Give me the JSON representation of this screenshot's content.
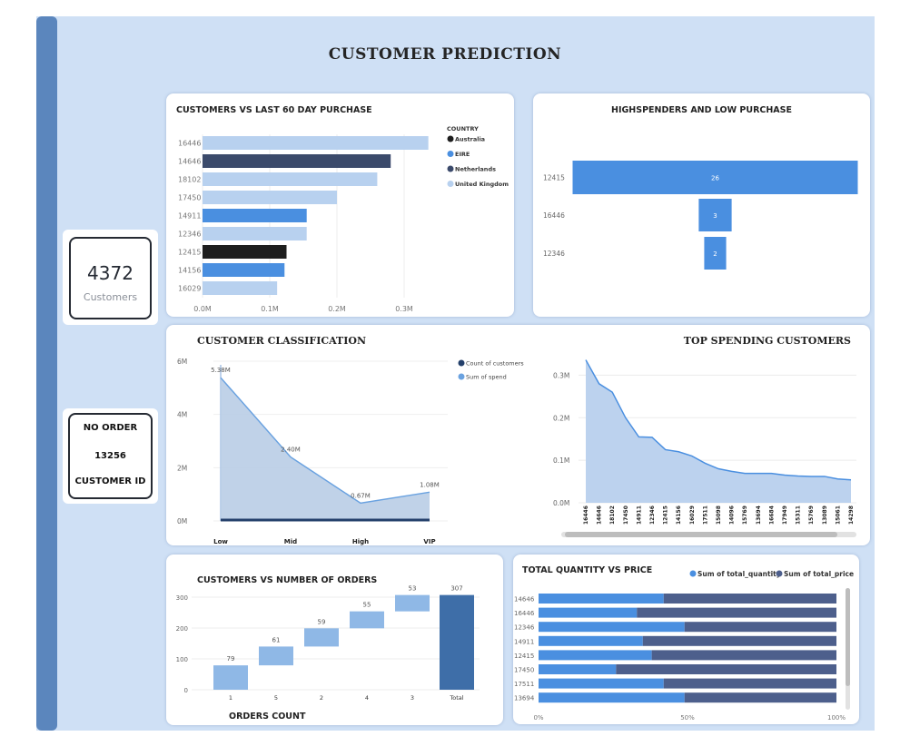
{
  "page": {
    "title": "CUSTOMER PREDICTION"
  },
  "kpi": {
    "value": "4372",
    "label": "Customers"
  },
  "no_order": {
    "line1": "NO ORDER",
    "line2": "13256",
    "line3": "CUSTOMER ID"
  },
  "colors": {
    "background": "#cfe0f5",
    "sidebar": "#5b86bd",
    "australia": "#1e1e1e",
    "eire": "#4a8fe0",
    "netherlands": "#3b4a6b",
    "united_kingdom": "#b8d1ef",
    "count_of_customers": "#24406b",
    "sum_of_spend": "#6aa2e0",
    "waterfall_step": "#8fb8e6",
    "waterfall_total": "#3e6ea8",
    "quantity": "#4a8fe0",
    "price": "#4d5f8c"
  },
  "chart_data": [
    {
      "id": "customers_vs_last_60",
      "type": "bar",
      "orientation": "horizontal",
      "title": "CUSTOMERS VS LAST 60 DAY PURCHASE",
      "categories": [
        "16446",
        "14646",
        "18102",
        "17450",
        "14911",
        "12346",
        "12415",
        "14156",
        "16029"
      ],
      "values": [
        0.336,
        0.28,
        0.26,
        0.2,
        0.155,
        0.155,
        0.125,
        0.122,
        0.111
      ],
      "country": [
        "United Kingdom",
        "Netherlands",
        "United Kingdom",
        "United Kingdom",
        "EIRE",
        "United Kingdom",
        "Australia",
        "EIRE",
        "United Kingdom"
      ],
      "x_ticks": [
        "0.0M",
        "0.1M",
        "0.2M",
        "0.3M"
      ],
      "xlim": [
        0,
        0.36
      ],
      "legend_title": "COUNTRY",
      "legend": [
        "Australia",
        "EIRE",
        "Netherlands",
        "United Kingdom"
      ],
      "legend_position": "right"
    },
    {
      "id": "highspenders",
      "type": "bar",
      "orientation": "funnel",
      "title": "HIGHSPENDERS AND LOW PURCHASE",
      "categories": [
        "12415",
        "16446",
        "12346"
      ],
      "values": [
        26,
        3,
        2
      ],
      "value_labels": [
        "26",
        "3",
        "2"
      ]
    },
    {
      "id": "customer_classification",
      "type": "area",
      "title": "CUSTOMER CLASSIFICATION",
      "categories": [
        "Low",
        "Mid",
        "High",
        "VIP"
      ],
      "series": [
        {
          "name": "Count of customers",
          "values": [
            0.0011,
            0.0014,
            0.0004,
            0.0001
          ]
        },
        {
          "name": "Sum of spend",
          "values": [
            5.38,
            2.4,
            0.67,
            1.08
          ],
          "labels": [
            "5.38M",
            "2.40M",
            "0.67M",
            "1.08M"
          ]
        }
      ],
      "y_ticks": [
        "0M",
        "2M",
        "4M",
        "6M"
      ],
      "ylim": [
        0,
        6
      ],
      "legend_position": "top-right"
    },
    {
      "id": "top_spending",
      "type": "area",
      "title": "TOP SPENDING CUSTOMERS",
      "categories": [
        "16446",
        "14646",
        "18102",
        "17450",
        "14911",
        "12346",
        "12415",
        "14156",
        "16029",
        "17511",
        "15098",
        "14096",
        "15769",
        "13694",
        "16684",
        "17949",
        "15311",
        "15769",
        "13089",
        "15061",
        "14298"
      ],
      "values": [
        0.336,
        0.28,
        0.26,
        0.2,
        0.155,
        0.154,
        0.125,
        0.12,
        0.11,
        0.093,
        0.08,
        0.074,
        0.069,
        0.069,
        0.069,
        0.065,
        0.063,
        0.062,
        0.062,
        0.056,
        0.054
      ],
      "y_ticks": [
        "0.0M",
        "0.1M",
        "0.2M",
        "0.3M"
      ],
      "ylim": [
        0,
        0.35
      ]
    },
    {
      "id": "customers_vs_orders",
      "type": "bar",
      "subtype": "waterfall",
      "title": "CUSTOMERS VS NUMBER OF ORDERS",
      "xlabel": "ORDERS COUNT",
      "categories": [
        "1",
        "5",
        "2",
        "4",
        "3",
        "Total"
      ],
      "values": [
        79,
        61,
        59,
        55,
        53,
        307
      ],
      "y_ticks": [
        "0",
        "100",
        "200",
        "300"
      ],
      "ylim": [
        0,
        320
      ]
    },
    {
      "id": "quantity_vs_price",
      "type": "bar",
      "subtype": "100% stacked horizontal",
      "title": "TOTAL QUANTITY VS PRICE",
      "categories": [
        "14646",
        "16446",
        "12346",
        "14911",
        "12415",
        "17450",
        "17511",
        "13694"
      ],
      "series": [
        {
          "name": "Sum of total_quantity",
          "values": [
            42,
            33,
            49,
            35,
            38,
            26,
            42,
            49
          ]
        },
        {
          "name": "Sum of total_price",
          "values": [
            58,
            67,
            51,
            65,
            62,
            74,
            58,
            51
          ]
        }
      ],
      "x_ticks": [
        "0%",
        "50%",
        "100%"
      ],
      "xlim": [
        0,
        100
      ],
      "legend_position": "top-right"
    }
  ]
}
